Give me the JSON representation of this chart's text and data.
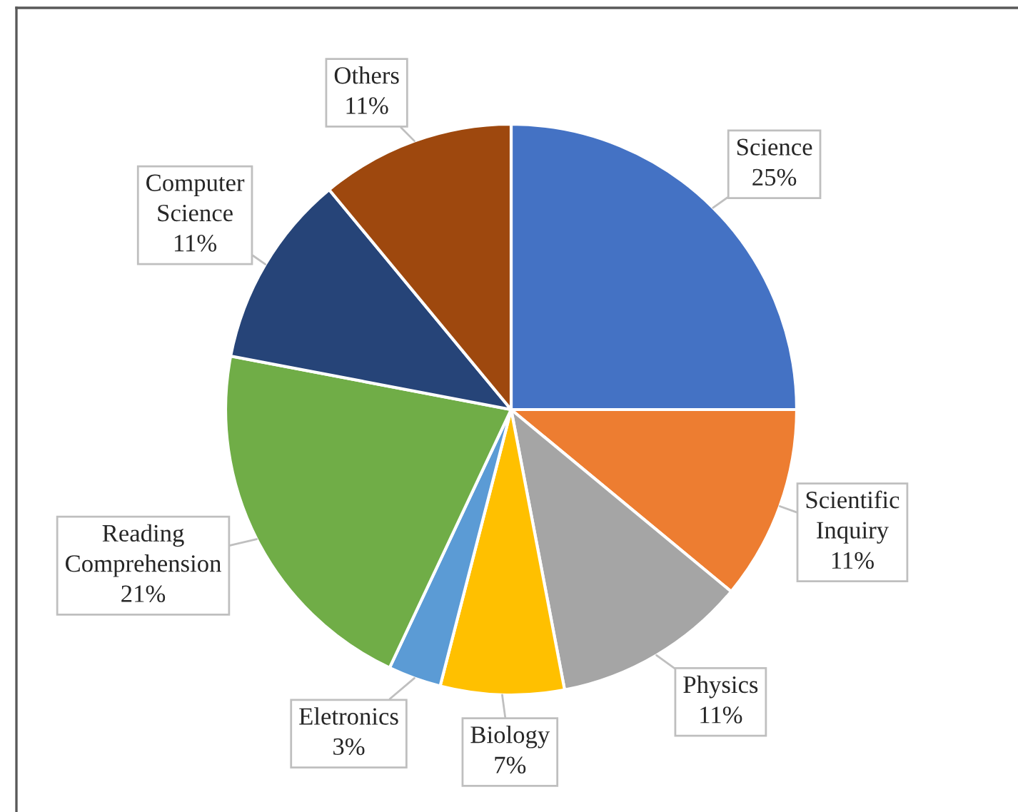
{
  "chart_data": {
    "type": "pie",
    "categories": [
      "Science",
      "Scientific Inquiry",
      "Physics",
      "Biology",
      "Eletronics",
      "Reading Comprehension",
      "Computer Science",
      "Others"
    ],
    "values": [
      25,
      11,
      11,
      7,
      3,
      21,
      11,
      11
    ],
    "colors": [
      "#4472c4",
      "#ed7d31",
      "#a5a5a5",
      "#ffc000",
      "#5b9bd5",
      "#70ad47",
      "#264478",
      "#9e480e"
    ],
    "value_labels": [
      "25%",
      "11%",
      "11%",
      "7%",
      "3%",
      "21%",
      "11%",
      "11%"
    ]
  }
}
